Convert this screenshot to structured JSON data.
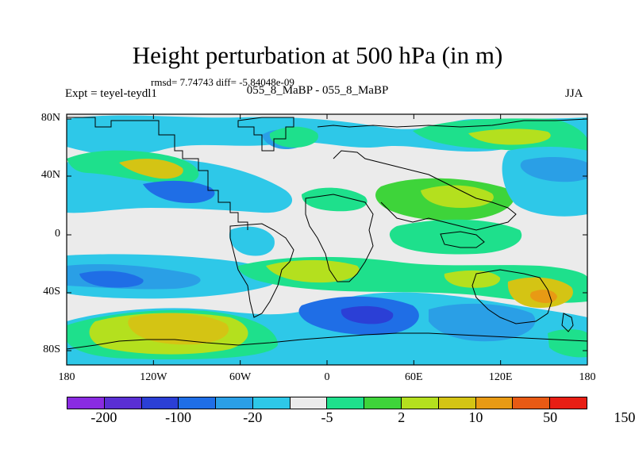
{
  "header": {
    "title": "Height perturbation at 500 hPa (in m)",
    "stats": "rmsd= 7.74743 diff= -5.84048e-09",
    "left_label": "Expt = teyel-teydl1",
    "center_label": "055_8_MaBP - 055_8_MaBP",
    "right_label": "JJA"
  },
  "map": {
    "y_ticks": [
      "80N",
      "40N",
      "0",
      "40S",
      "80S"
    ],
    "x_ticks": [
      "180",
      "120W",
      "60W",
      "0",
      "60E",
      "120E",
      "180"
    ]
  },
  "colorbar": {
    "colors": [
      "#8a2be2",
      "#5a2fd4",
      "#2b3fd6",
      "#1f6ee6",
      "#2a9fe6",
      "#2ec8e8",
      "#ebebeb",
      "#1ee08c",
      "#3ed43a",
      "#b4e01e",
      "#d4c414",
      "#e89a14",
      "#e85a14",
      "#e81e14"
    ],
    "labels": [
      "-200",
      "-100",
      "-20",
      "-5",
      "2",
      "10",
      "50",
      "150"
    ]
  },
  "legend_colors": {
    "neutral": "#ebebeb",
    "light_blue": "#2ec8e8",
    "mid_blue": "#2a9fe6",
    "deep_blue": "#1f6ee6",
    "dark_blue": "#2b3fd6",
    "mint": "#1ee08c",
    "green": "#3ed43a",
    "yellow_green": "#b4e01e",
    "yellow": "#d4c414",
    "orange": "#e89a14"
  }
}
